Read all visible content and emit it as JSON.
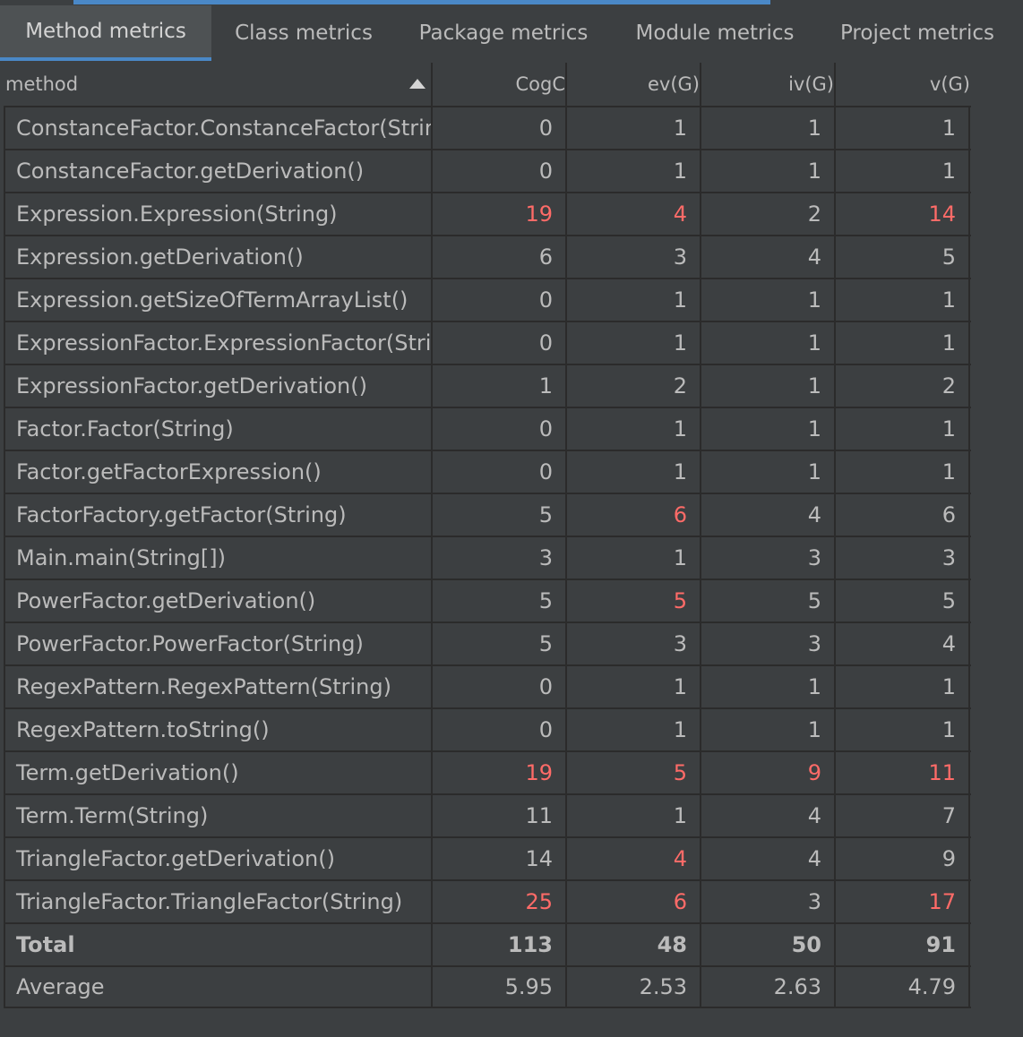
{
  "tabs": [
    {
      "label": "Method metrics",
      "active": true
    },
    {
      "label": "Class metrics"
    },
    {
      "label": "Package metrics"
    },
    {
      "label": "Module metrics"
    },
    {
      "label": "Project metrics"
    }
  ],
  "columns": [
    "method",
    "CogC",
    "ev(G)",
    "iv(G)",
    "v(G)"
  ],
  "colors": {
    "accent": "#4a88c7",
    "warning": "#ff6b68"
  },
  "rows": [
    {
      "method": "ConstanceFactor.ConstanceFactor(String)",
      "cells": [
        "0",
        "1",
        "1",
        "1"
      ],
      "warn": [
        false,
        false,
        false,
        false
      ]
    },
    {
      "method": "ConstanceFactor.getDerivation()",
      "cells": [
        "0",
        "1",
        "1",
        "1"
      ],
      "warn": [
        false,
        false,
        false,
        false
      ]
    },
    {
      "method": "Expression.Expression(String)",
      "cells": [
        "19",
        "4",
        "2",
        "14"
      ],
      "warn": [
        true,
        true,
        false,
        true
      ]
    },
    {
      "method": "Expression.getDerivation()",
      "cells": [
        "6",
        "3",
        "4",
        "5"
      ],
      "warn": [
        false,
        false,
        false,
        false
      ]
    },
    {
      "method": "Expression.getSizeOfTermArrayList()",
      "cells": [
        "0",
        "1",
        "1",
        "1"
      ],
      "warn": [
        false,
        false,
        false,
        false
      ]
    },
    {
      "method": "ExpressionFactor.ExpressionFactor(String)",
      "cells": [
        "0",
        "1",
        "1",
        "1"
      ],
      "warn": [
        false,
        false,
        false,
        false
      ]
    },
    {
      "method": "ExpressionFactor.getDerivation()",
      "cells": [
        "1",
        "2",
        "1",
        "2"
      ],
      "warn": [
        false,
        false,
        false,
        false
      ]
    },
    {
      "method": "Factor.Factor(String)",
      "cells": [
        "0",
        "1",
        "1",
        "1"
      ],
      "warn": [
        false,
        false,
        false,
        false
      ]
    },
    {
      "method": "Factor.getFactorExpression()",
      "cells": [
        "0",
        "1",
        "1",
        "1"
      ],
      "warn": [
        false,
        false,
        false,
        false
      ]
    },
    {
      "method": "FactorFactory.getFactor(String)",
      "cells": [
        "5",
        "6",
        "4",
        "6"
      ],
      "warn": [
        false,
        true,
        false,
        false
      ]
    },
    {
      "method": "Main.main(String[])",
      "cells": [
        "3",
        "1",
        "3",
        "3"
      ],
      "warn": [
        false,
        false,
        false,
        false
      ]
    },
    {
      "method": "PowerFactor.getDerivation()",
      "cells": [
        "5",
        "5",
        "5",
        "5"
      ],
      "warn": [
        false,
        true,
        false,
        false
      ]
    },
    {
      "method": "PowerFactor.PowerFactor(String)",
      "cells": [
        "5",
        "3",
        "3",
        "4"
      ],
      "warn": [
        false,
        false,
        false,
        false
      ]
    },
    {
      "method": "RegexPattern.RegexPattern(String)",
      "cells": [
        "0",
        "1",
        "1",
        "1"
      ],
      "warn": [
        false,
        false,
        false,
        false
      ]
    },
    {
      "method": "RegexPattern.toString()",
      "cells": [
        "0",
        "1",
        "1",
        "1"
      ],
      "warn": [
        false,
        false,
        false,
        false
      ]
    },
    {
      "method": "Term.getDerivation()",
      "cells": [
        "19",
        "5",
        "9",
        "11"
      ],
      "warn": [
        true,
        true,
        true,
        true
      ]
    },
    {
      "method": "Term.Term(String)",
      "cells": [
        "11",
        "1",
        "4",
        "7"
      ],
      "warn": [
        false,
        false,
        false,
        false
      ]
    },
    {
      "method": "TriangleFactor.getDerivation()",
      "cells": [
        "14",
        "4",
        "4",
        "9"
      ],
      "warn": [
        false,
        true,
        false,
        false
      ]
    },
    {
      "method": "TriangleFactor.TriangleFactor(String)",
      "cells": [
        "25",
        "6",
        "3",
        "17"
      ],
      "warn": [
        true,
        true,
        false,
        true
      ]
    }
  ],
  "total": {
    "label": "Total",
    "cells": [
      "113",
      "48",
      "50",
      "91"
    ]
  },
  "average": {
    "label": "Average",
    "cells": [
      "5.95",
      "2.53",
      "2.63",
      "4.79"
    ]
  }
}
